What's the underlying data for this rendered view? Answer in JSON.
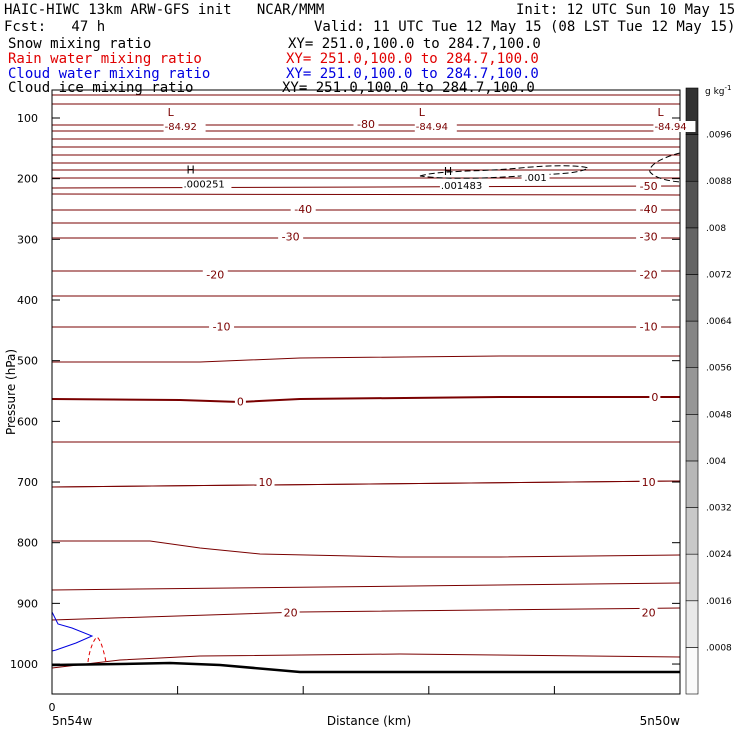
{
  "header": {
    "title_left": "HAIC-HIWC 13km ARW-GFS init   NCAR/MMM",
    "init": "Init: 12 UTC Sun 10 May 15",
    "fcst": "Fcst:   47 h",
    "valid": "Valid: 11 UTC Tue 12 May 15 (08 LST Tue 12 May 15)"
  },
  "fields": [
    {
      "label": "Snow mixing ratio",
      "xy": "XY= 251.0,100.0 to 284.7,100.0",
      "color": "#000000"
    },
    {
      "label": "Rain water mixing ratio",
      "xy": "XY= 251.0,100.0 to 284.7,100.0",
      "color": "#e00000"
    },
    {
      "label": "Cloud water mixing ratio",
      "xy": "XY= 251.0,100.0 to 284.7,100.0",
      "color": "#0000e0"
    },
    {
      "label": "Cloud ice mixing ratio",
      "xy": "XY= 251.0,100.0 to 284.7,100.0",
      "color": "#000000"
    }
  ],
  "chart_data": {
    "type": "contour-cross-section",
    "ylabel": "Pressure (hPa)",
    "xlabel": "Distance (km)",
    "x_start_label": "5n54w",
    "x_end_label": "5n50w",
    "x_zero_label": "0",
    "y_ticks": [
      100,
      200,
      300,
      400,
      500,
      600,
      700,
      800,
      900,
      1000
    ],
    "ylim": [
      1050,
      60
    ],
    "xlim": [
      0,
      100
    ],
    "temperature_labels": [
      {
        "text": "-80",
        "x": 50,
        "p": 110
      },
      {
        "text": "-50",
        "x": 95,
        "p": 212
      },
      {
        "text": "-40",
        "x": 40,
        "p": 250
      },
      {
        "text": "-40",
        "x": 95,
        "p": 250
      },
      {
        "text": "-30",
        "x": 38,
        "p": 295
      },
      {
        "text": "-30",
        "x": 95,
        "p": 295
      },
      {
        "text": "-20",
        "x": 26,
        "p": 358
      },
      {
        "text": "-20",
        "x": 95,
        "p": 358
      },
      {
        "text": "-10",
        "x": 27,
        "p": 444
      },
      {
        "text": "-10",
        "x": 95,
        "p": 444
      },
      {
        "text": "0",
        "x": 30,
        "p": 567
      },
      {
        "text": "0",
        "x": 96,
        "p": 560
      },
      {
        "text": "10",
        "x": 34,
        "p": 700
      },
      {
        "text": "10",
        "x": 95,
        "p": 700
      },
      {
        "text": "20",
        "x": 38,
        "p": 915
      },
      {
        "text": "20",
        "x": 95,
        "p": 915
      }
    ],
    "extrema": [
      {
        "mark": "L",
        "value": "-84.92",
        "x": 20,
        "p": 100
      },
      {
        "mark": "L",
        "value": "-84.94",
        "x": 60,
        "p": 100
      },
      {
        "mark": "L",
        "value": "-84.94",
        "x": 98,
        "p": 100
      },
      {
        "mark": "H",
        "value": ".000251",
        "x": 23,
        "p": 195
      },
      {
        "mark": "H",
        "value": ".001483",
        "x": 64,
        "p": 197
      }
    ],
    "ice_contour_label": {
      "text": ".001",
      "x": 77,
      "p": 197
    },
    "colorbar": {
      "unit": "g kg",
      "unit_exponent": "-1",
      "ticks": [
        ".0008",
        ".0016",
        ".0024",
        ".0032",
        ".004",
        ".0048",
        ".0056",
        ".0064",
        ".0072",
        ".008",
        ".0088",
        ".0096"
      ]
    }
  }
}
